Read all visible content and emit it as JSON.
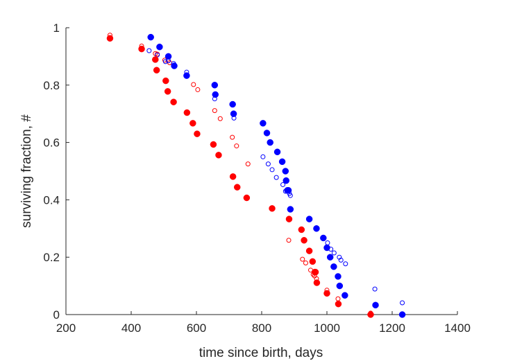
{
  "chart_data": {
    "type": "scatter",
    "title": "",
    "xlabel": "time since birth, days",
    "ylabel": "surviving fraction, #",
    "xlim": [
      200,
      1400
    ],
    "ylim": [
      0,
      1
    ],
    "xticks": [
      "200",
      "400",
      "600",
      "800",
      "1000",
      "1200",
      "1400"
    ],
    "yticks": [
      "0",
      "0.2",
      "0.4",
      "0.6",
      "0.8",
      "1"
    ],
    "grid": false,
    "legend": "none",
    "series": [
      {
        "color": "#ff0000",
        "marker": "filled",
        "points": [
          [
            335,
            0.963
          ],
          [
            432,
            0.926
          ],
          [
            474,
            0.889
          ],
          [
            478,
            0.852
          ],
          [
            506,
            0.815
          ],
          [
            512,
            0.778
          ],
          [
            530,
            0.741
          ],
          [
            571,
            0.704
          ],
          [
            589,
            0.667
          ],
          [
            602,
            0.63
          ],
          [
            652,
            0.593
          ],
          [
            668,
            0.556
          ],
          [
            712,
            0.481
          ],
          [
            725,
            0.444
          ],
          [
            754,
            0.407
          ],
          [
            832,
            0.37
          ],
          [
            884,
            0.333
          ],
          [
            922,
            0.296
          ],
          [
            930,
            0.259
          ],
          [
            946,
            0.222
          ],
          [
            956,
            0.185
          ],
          [
            963,
            0.148
          ],
          [
            965,
            0.148
          ],
          [
            969,
            0.111
          ],
          [
            1000,
            0.074
          ],
          [
            1035,
            0.037
          ],
          [
            1134,
            0.0
          ]
        ]
      },
      {
        "color": "#ff0000",
        "marker": "open",
        "points": [
          [
            335,
            0.974
          ],
          [
            432,
            0.936
          ],
          [
            474,
            0.91
          ],
          [
            480,
            0.908
          ],
          [
            503,
            0.887
          ],
          [
            513,
            0.885
          ],
          [
            518,
            0.878
          ],
          [
            591,
            0.802
          ],
          [
            604,
            0.784
          ],
          [
            656,
            0.711
          ],
          [
            673,
            0.683
          ],
          [
            710,
            0.618
          ],
          [
            723,
            0.588
          ],
          [
            758,
            0.525
          ],
          [
            883,
            0.259
          ],
          [
            925,
            0.193
          ],
          [
            935,
            0.18
          ],
          [
            950,
            0.155
          ],
          [
            958,
            0.14
          ],
          [
            962,
            0.135
          ],
          [
            968,
            0.125
          ],
          [
            1000,
            0.085
          ],
          [
            1034,
            0.055
          ],
          [
            1134,
            0.005
          ]
        ]
      },
      {
        "color": "#0000ff",
        "marker": "filled",
        "points": [
          [
            460,
            0.967
          ],
          [
            487,
            0.933
          ],
          [
            514,
            0.9
          ],
          [
            532,
            0.867
          ],
          [
            570,
            0.833
          ],
          [
            656,
            0.8
          ],
          [
            658,
            0.767
          ],
          [
            711,
            0.733
          ],
          [
            714,
            0.7
          ],
          [
            804,
            0.667
          ],
          [
            816,
            0.633
          ],
          [
            826,
            0.6
          ],
          [
            848,
            0.567
          ],
          [
            863,
            0.533
          ],
          [
            873,
            0.5
          ],
          [
            875,
            0.467
          ],
          [
            879,
            0.433
          ],
          [
            882,
            0.433
          ],
          [
            888,
            0.367
          ],
          [
            946,
            0.333
          ],
          [
            968,
            0.3
          ],
          [
            989,
            0.267
          ],
          [
            1000,
            0.233
          ],
          [
            1010,
            0.2
          ],
          [
            1021,
            0.167
          ],
          [
            1034,
            0.133
          ],
          [
            1039,
            0.1
          ],
          [
            1055,
            0.067
          ],
          [
            1149,
            0.033
          ],
          [
            1231,
            0.0
          ]
        ]
      },
      {
        "color": "#0000ff",
        "marker": "open",
        "points": [
          [
            455,
            0.92
          ],
          [
            480,
            0.905
          ],
          [
            505,
            0.882
          ],
          [
            514,
            0.885
          ],
          [
            530,
            0.875
          ],
          [
            570,
            0.845
          ],
          [
            656,
            0.752
          ],
          [
            715,
            0.685
          ],
          [
            804,
            0.55
          ],
          [
            820,
            0.525
          ],
          [
            832,
            0.505
          ],
          [
            845,
            0.478
          ],
          [
            865,
            0.453
          ],
          [
            873,
            0.43
          ],
          [
            885,
            0.422
          ],
          [
            888,
            0.415
          ],
          [
            1002,
            0.25
          ],
          [
            1012,
            0.228
          ],
          [
            1022,
            0.215
          ],
          [
            1038,
            0.2
          ],
          [
            1043,
            0.19
          ],
          [
            1057,
            0.177
          ],
          [
            1147,
            0.089
          ],
          [
            1231,
            0.041
          ]
        ]
      }
    ]
  }
}
